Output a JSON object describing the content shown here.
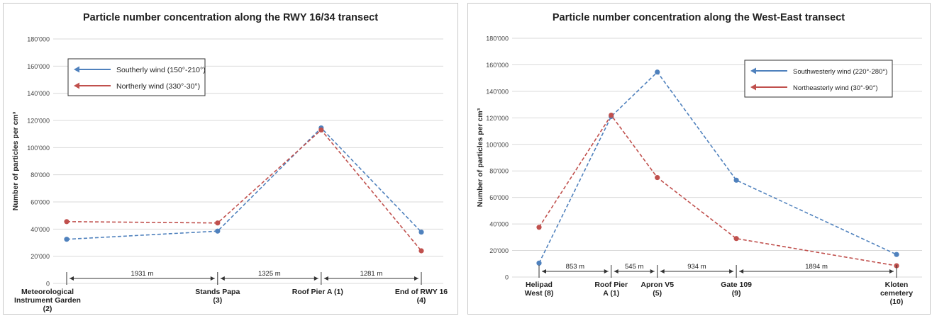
{
  "chart_data": [
    {
      "type": "line",
      "title": "Particle number concentration along the RWY 16/34 transect",
      "ylabel": "Number of particles per cm³",
      "xlabel": "",
      "ylim": [
        0,
        180000
      ],
      "yticks": [
        "0",
        "20'000",
        "40'000",
        "60'000",
        "80'000",
        "100'000",
        "120'000",
        "140'000",
        "160'000",
        "180'000"
      ],
      "grid": "horizontal",
      "legend_position": "top-left",
      "categories": [
        {
          "line1": "Meteorological",
          "line2": "Instrument Garden",
          "line3": "(2)"
        },
        {
          "line1": "Stands Papa",
          "line2": "(3)",
          "line3": ""
        },
        {
          "line1": "Roof Pier  A (1)",
          "line2": "",
          "line3": ""
        },
        {
          "line1": "End of RWY 16",
          "line2": "(4)",
          "line3": ""
        }
      ],
      "distances": [
        "1931 m",
        "1325 m",
        "1281 m"
      ],
      "distance_values": [
        1931,
        1325,
        1281
      ],
      "series": [
        {
          "name": "Southerly wind (150°-210°)",
          "color": "#4f81bd",
          "values": [
            32500,
            38500,
            114500,
            37800
          ]
        },
        {
          "name": "Northerly wind (330°-30°)",
          "color": "#c0504d",
          "values": [
            45500,
            44500,
            113000,
            24000
          ]
        }
      ]
    },
    {
      "type": "line",
      "title": "Particle number concentration along the West-East transect",
      "ylabel": "Number of particles per cm³",
      "xlabel": "",
      "ylim": [
        0,
        180000
      ],
      "yticks": [
        "0",
        "20'000",
        "40'000",
        "60'000",
        "80'000",
        "100'000",
        "120'000",
        "140'000",
        "160'000",
        "180'000"
      ],
      "grid": "horizontal",
      "legend_position": "top-right",
      "categories": [
        {
          "line1": "Helipad",
          "line2": "West (8)",
          "line3": ""
        },
        {
          "line1": "Roof Pier",
          "line2": "A (1)",
          "line3": ""
        },
        {
          "line1": "Apron V5",
          "line2": "(5)",
          "line3": ""
        },
        {
          "line1": "Gate 109",
          "line2": "(9)",
          "line3": ""
        },
        {
          "line1": "Kloten",
          "line2": "cemetery",
          "line3": "(10)"
        }
      ],
      "distances": [
        "853 m",
        "545 m",
        "934 m",
        "1894 m"
      ],
      "distance_values": [
        853,
        545,
        934,
        1894
      ],
      "series": [
        {
          "name": "Southwesterly wind (220°-280°)",
          "color": "#4f81bd",
          "values": [
            10500,
            121000,
            154500,
            73000,
            17000
          ]
        },
        {
          "name": "Northeasterly wind (30°-90°)",
          "color": "#c0504d",
          "values": [
            37500,
            122000,
            75000,
            29000,
            8500
          ]
        }
      ]
    }
  ]
}
